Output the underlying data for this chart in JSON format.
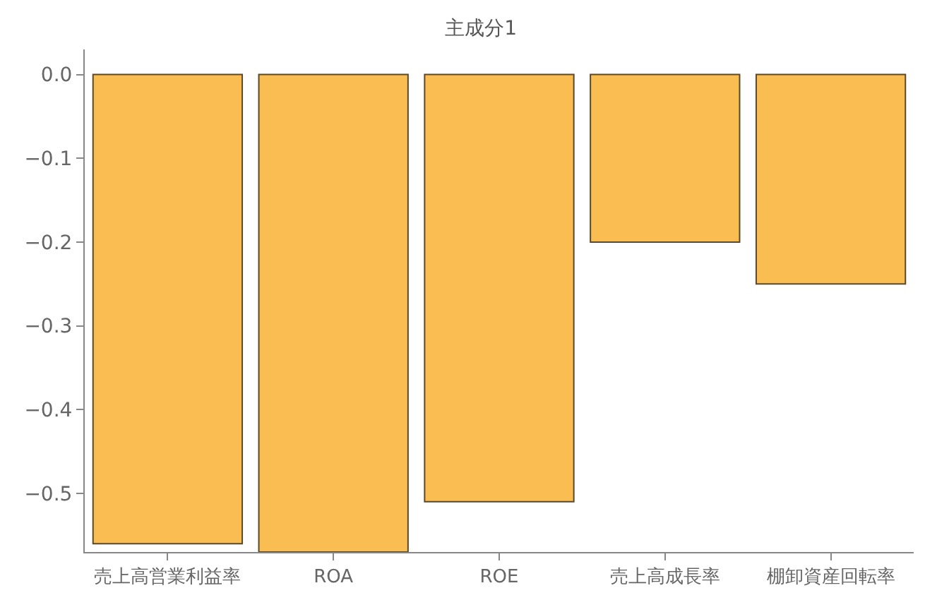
{
  "chart_data": {
    "type": "bar",
    "title": "主成分1",
    "categories": [
      "売上高営業利益率",
      "ROA",
      "ROE",
      "売上高成長率",
      "棚卸資産回転率"
    ],
    "values": [
      -0.56,
      -0.57,
      -0.51,
      -0.2,
      -0.25
    ],
    "color": "#f9bd52",
    "ylim": [
      -0.57,
      0.03
    ],
    "yticks": [
      {
        "value": 0.0,
        "label": "0.0"
      },
      -0.1,
      -0.2,
      -0.3,
      -0.4,
      -0.5
    ]
  }
}
